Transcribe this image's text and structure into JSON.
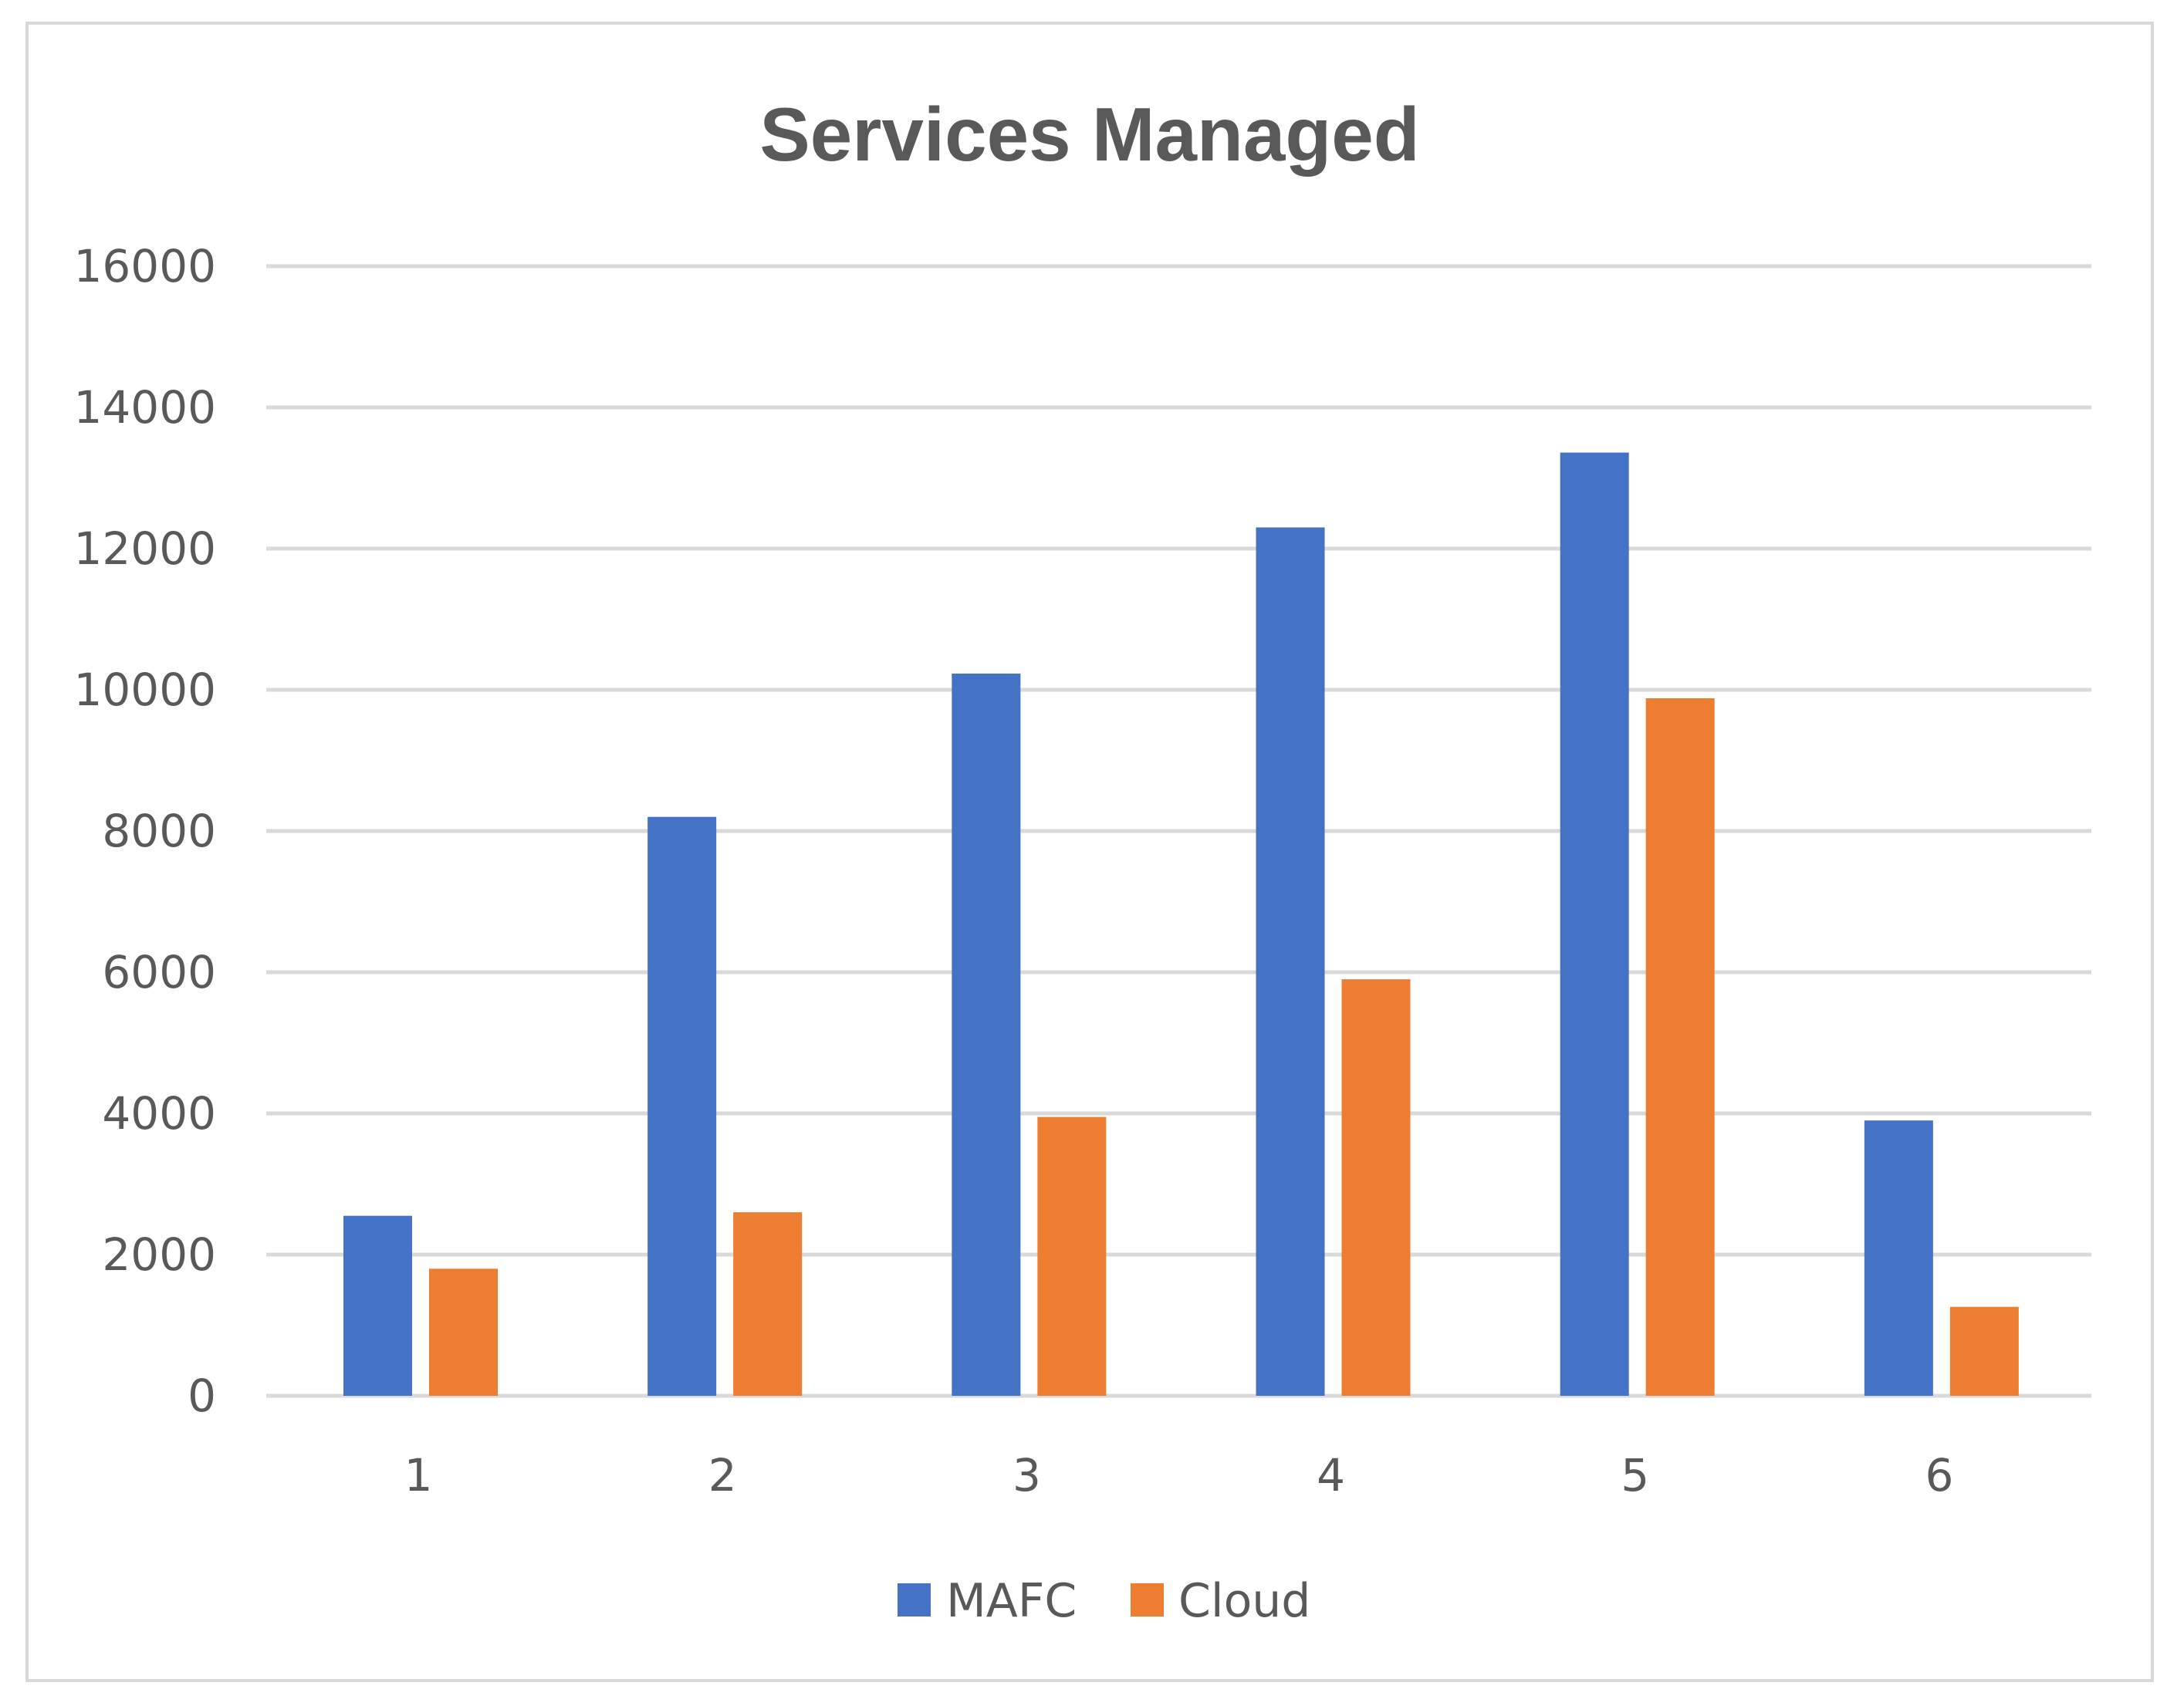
{
  "chart_data": {
    "type": "bar",
    "title": "Services Managed",
    "categories": [
      "1",
      "2",
      "3",
      "4",
      "5",
      "6"
    ],
    "series": [
      {
        "name": "MAFC",
        "color": "#4472c4",
        "values": [
          2550,
          8200,
          10230,
          12300,
          13360,
          3900
        ]
      },
      {
        "name": "Cloud",
        "color": "#ed7d31",
        "values": [
          1800,
          2600,
          3950,
          5900,
          9880,
          1260
        ]
      }
    ],
    "y_ticks": [
      "0",
      "2000",
      "4000",
      "6000",
      "8000",
      "10000",
      "12000",
      "14000",
      "16000"
    ],
    "ylim": [
      0,
      16000
    ],
    "xlabel": "",
    "ylabel": "",
    "grid": true,
    "legend": "bottom-center",
    "gridline_color": "#d9d9d9"
  }
}
